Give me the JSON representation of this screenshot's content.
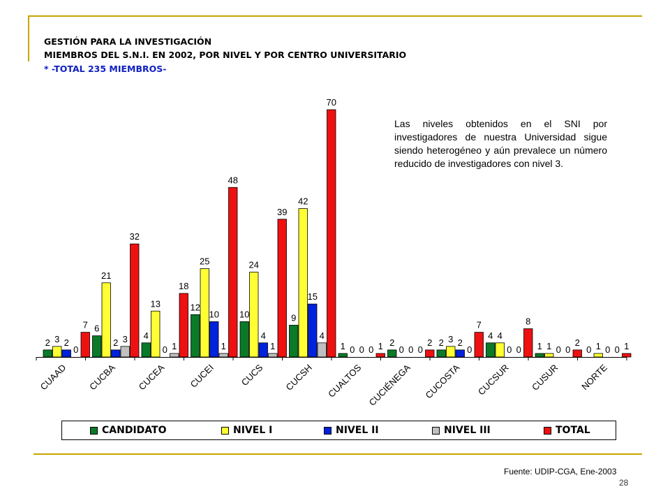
{
  "header": {
    "title1": "GESTIÓN PARA LA INVESTIGACIÓN",
    "title2": "MIEMBROS DEL S.N.I. EN 2002, POR NIVEL Y POR CENTRO UNIVERSITARIO",
    "title3": "* -TOTAL 235 MIEMBROS-"
  },
  "note": "Las niveles obtenidos en el SNI por investigadores de nuestra Universidad sigue siendo heterogéneo y aún prevalece un número reducido de investigadores con nivel 3.",
  "footer": {
    "source": "Fuente: UDIP-CGA, Ene-2003",
    "page": "28"
  },
  "chart_data": {
    "type": "bar",
    "categories": [
      "CUAAD",
      "CUCBA",
      "CUCEA",
      "CUCEI",
      "CUCS",
      "CUCSH",
      "CUALTOS",
      "CUCIÉNEGA",
      "CUCOSTA",
      "CUCSUR",
      "CUSUR",
      "NORTE"
    ],
    "series": [
      {
        "name": "CANDIDATO",
        "color": "#0a7a28",
        "values": [
          2,
          6,
          4,
          12,
          10,
          9,
          1,
          2,
          2,
          4,
          1,
          0
        ]
      },
      {
        "name": "NIVEL I",
        "color": "#ffff33",
        "values": [
          3,
          21,
          13,
          25,
          24,
          42,
          0,
          0,
          3,
          4,
          1,
          1
        ]
      },
      {
        "name": "NIVEL II",
        "color": "#0022dd",
        "values": [
          2,
          2,
          0,
          10,
          4,
          15,
          0,
          0,
          2,
          0,
          0,
          0
        ]
      },
      {
        "name": "NIVEL III",
        "color": "#c0c0c0",
        "values": [
          0,
          3,
          1,
          1,
          1,
          4,
          0,
          0,
          0,
          0,
          0,
          0
        ]
      },
      {
        "name": "TOTAL",
        "color": "#ee1111",
        "values": [
          7,
          32,
          18,
          48,
          39,
          70,
          1,
          2,
          7,
          8,
          2,
          1
        ]
      }
    ],
    "ylim": [
      0,
      72
    ],
    "data_labels": true,
    "grid": false,
    "legend": "bottom"
  }
}
